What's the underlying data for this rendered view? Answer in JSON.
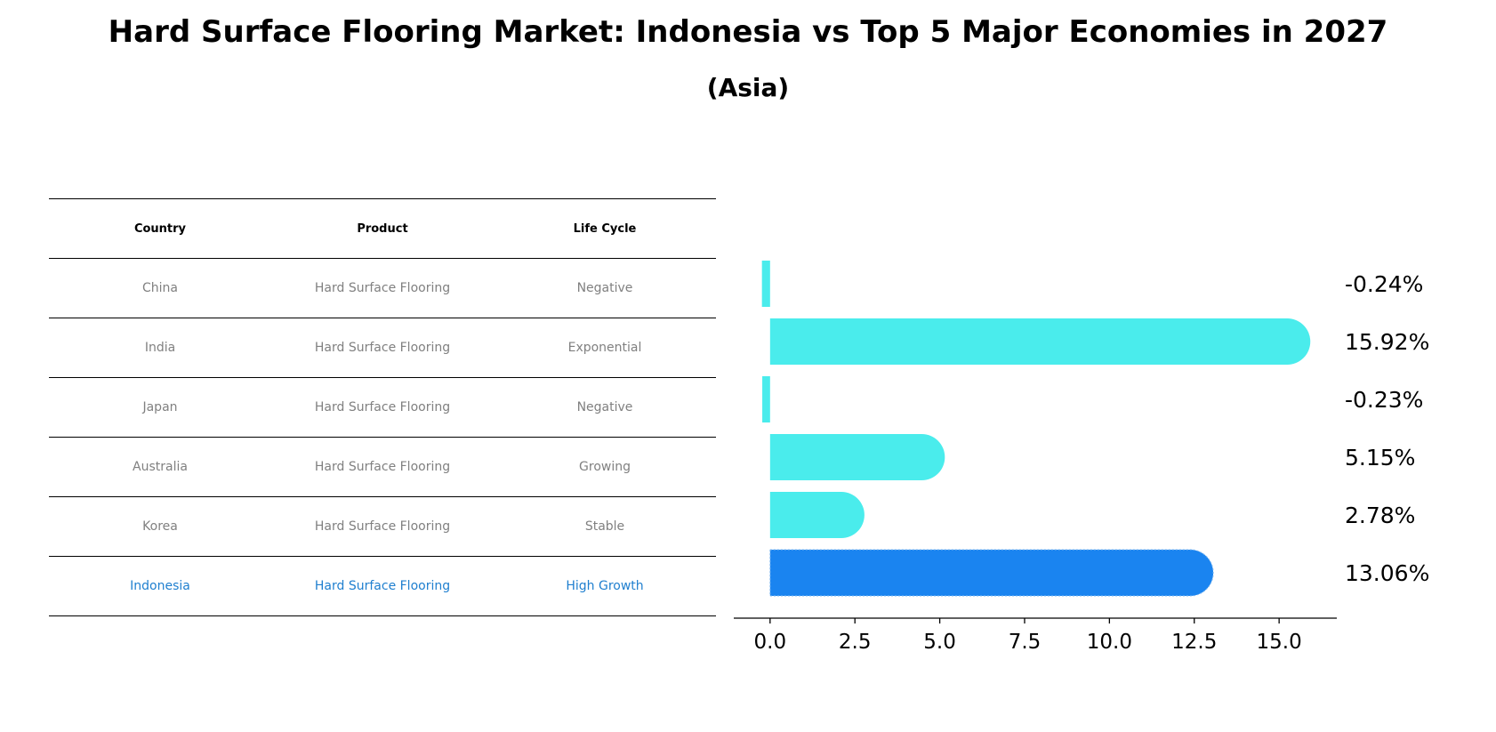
{
  "title": "Hard Surface Flooring Market: Indonesia vs Top 5 Major Economies in 2027",
  "subtitle": "(Asia)",
  "table": {
    "headers": [
      "Country",
      "Product",
      "Life Cycle"
    ],
    "rows": [
      [
        "China",
        "Hard Surface Flooring",
        "Negative"
      ],
      [
        "India",
        "Hard Surface Flooring",
        "Exponential"
      ],
      [
        "Japan",
        "Hard Surface Flooring",
        "Negative"
      ],
      [
        "Australia",
        "Hard Surface Flooring",
        "Growing"
      ],
      [
        "Korea",
        "Hard Surface Flooring",
        "Stable"
      ],
      [
        "Indonesia",
        "Hard Surface Flooring",
        "High Growth"
      ]
    ]
  },
  "chart_data": {
    "type": "bar",
    "orientation": "horizontal",
    "categories": [
      "China",
      "India",
      "Japan",
      "Australia",
      "Korea",
      "Indonesia"
    ],
    "values": [
      -0.24,
      15.92,
      -0.23,
      5.15,
      2.78,
      13.06
    ],
    "value_labels": [
      "-0.24%",
      "15.92%",
      "-0.23%",
      "5.15%",
      "2.78%",
      "13.06%"
    ],
    "highlight": "Indonesia",
    "xlim": [
      -1.07,
      16.7
    ],
    "xticks": [
      0.0,
      2.5,
      5.0,
      7.5,
      10.0,
      12.5,
      15.0
    ],
    "xtick_labels": [
      "0.0",
      "2.5",
      "5.0",
      "7.5",
      "10.0",
      "12.5",
      "15.0"
    ],
    "colors": {
      "default": "#4aecec",
      "highlight": "#1a84f0"
    }
  }
}
